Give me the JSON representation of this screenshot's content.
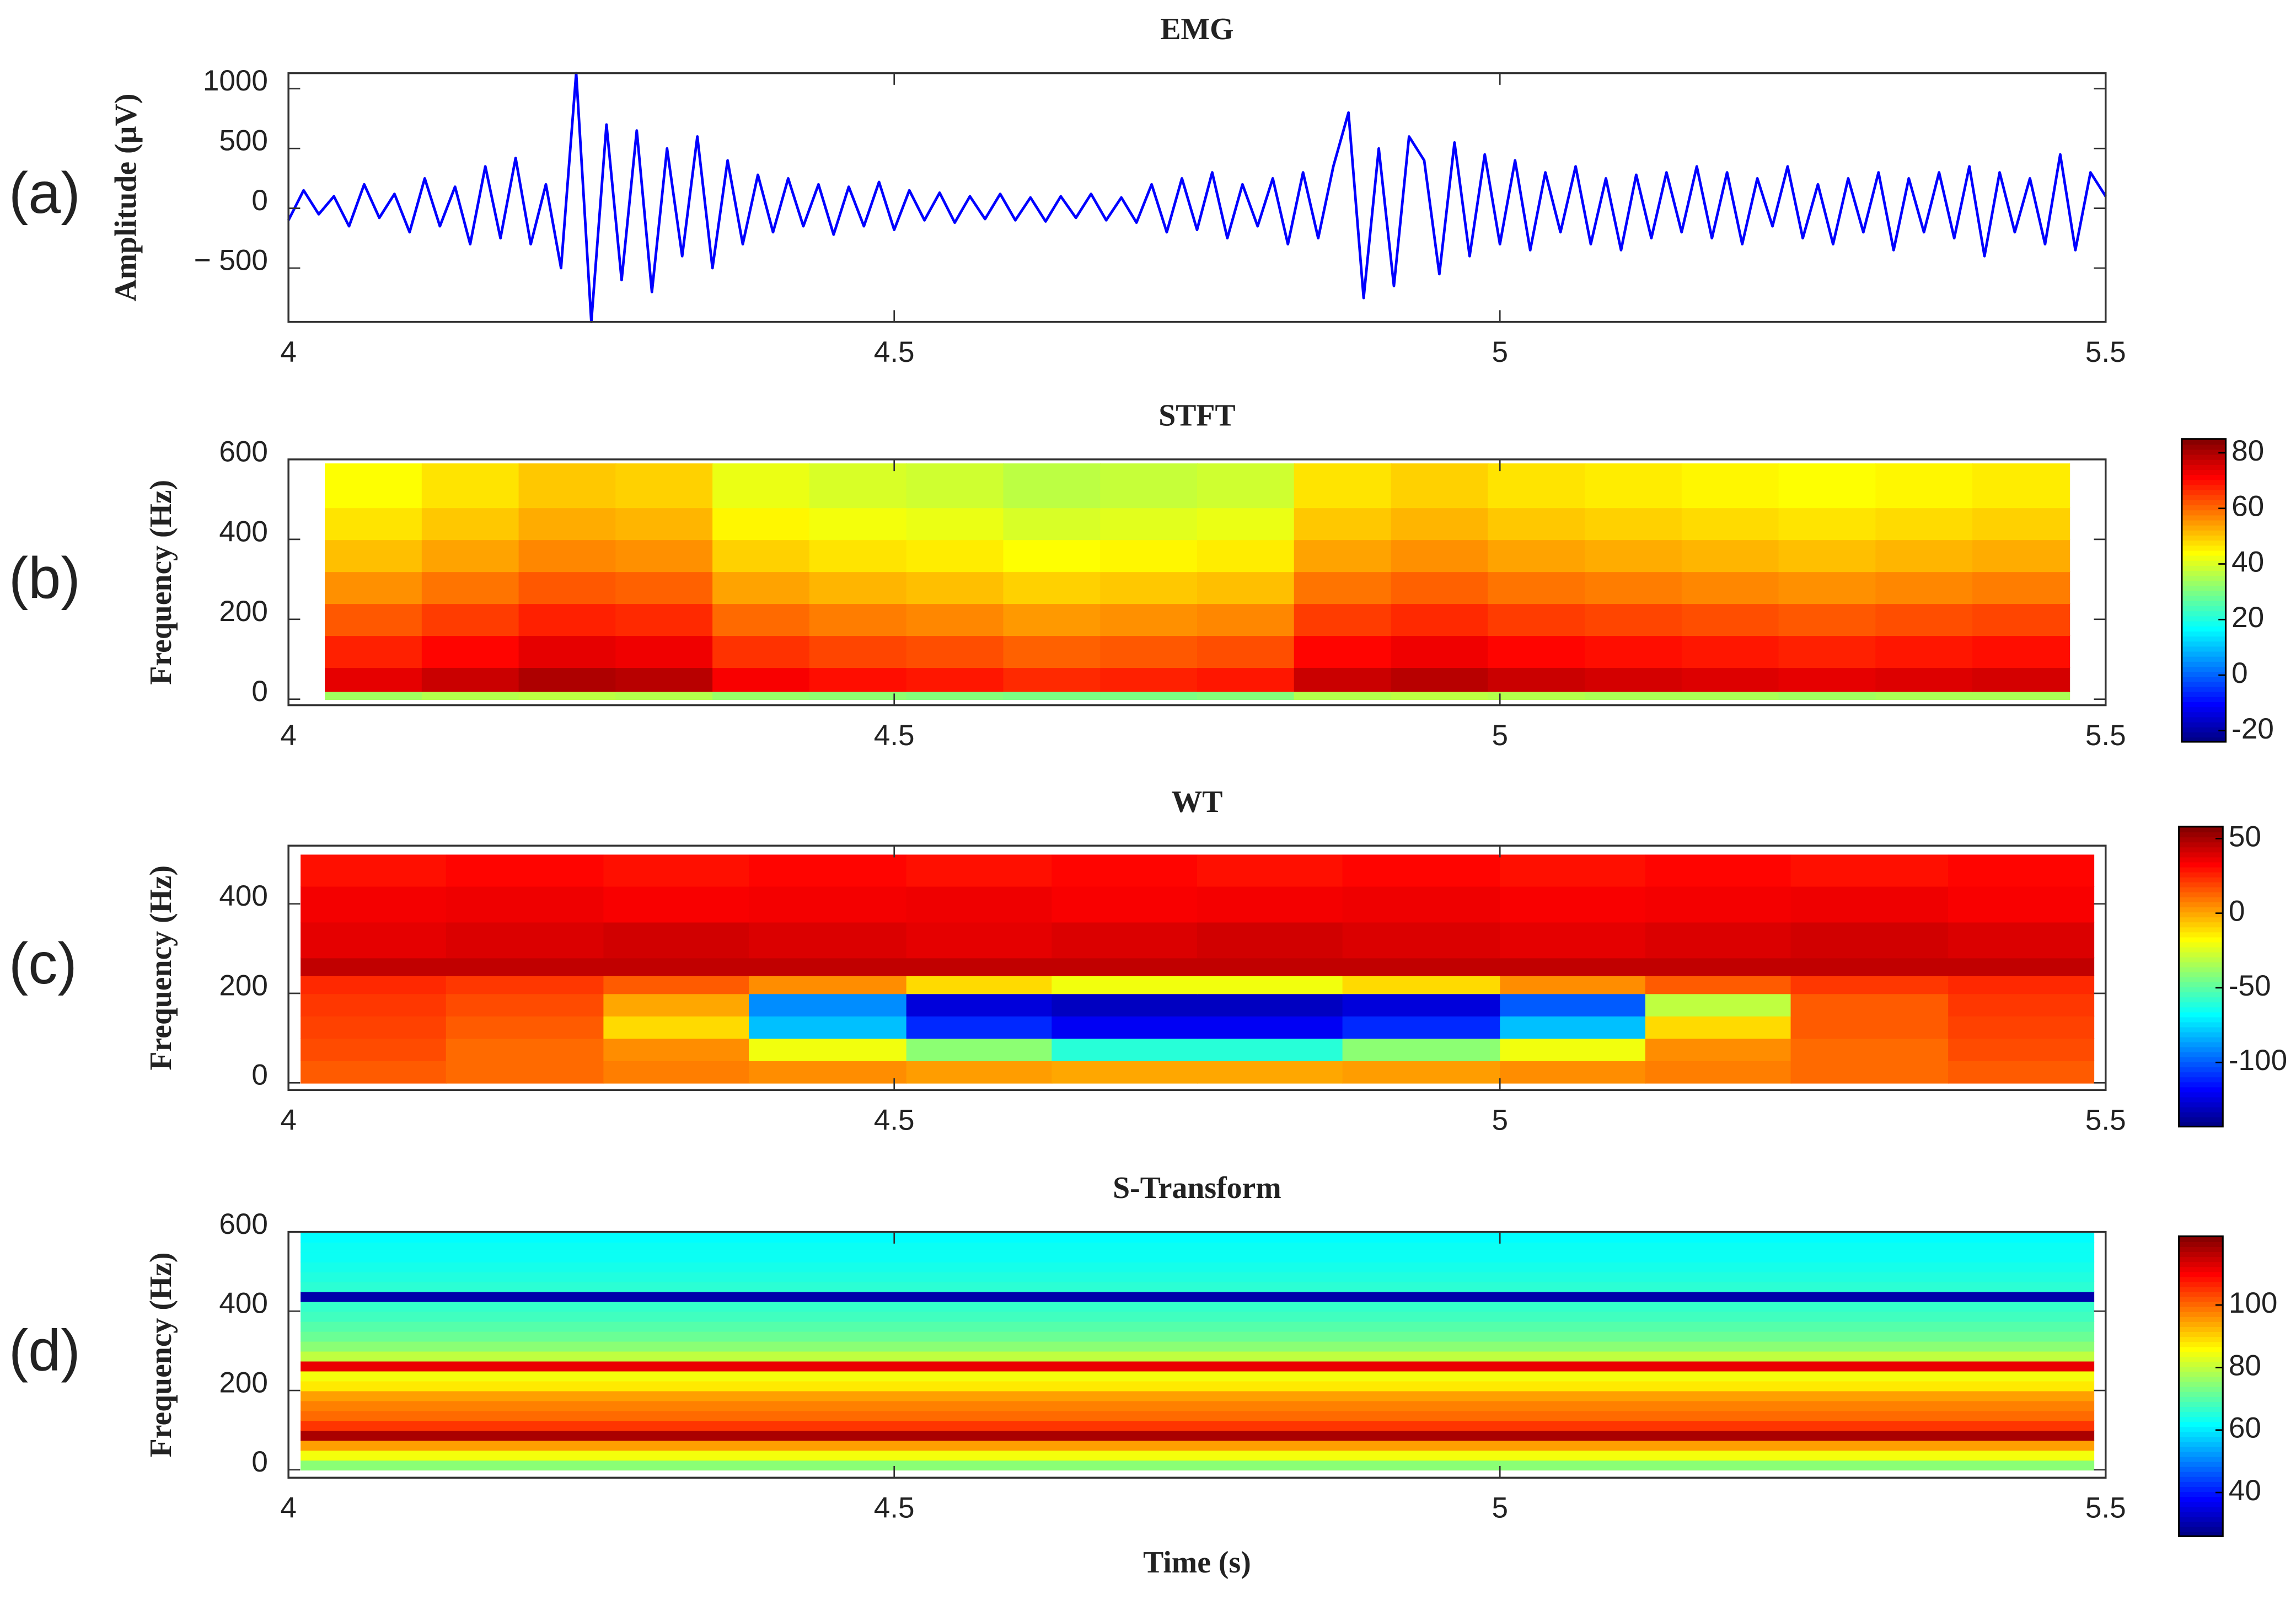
{
  "chart_data": [
    {
      "type": "line",
      "title": "EMG",
      "panel_label": "(a)",
      "y_label": "Amplitude (µV)",
      "color": "#0000ff",
      "xlim": [
        4,
        5.5
      ],
      "xticks": [
        4,
        4.5,
        5,
        5.5
      ],
      "ylim": [
        -950,
        1130
      ],
      "yticks": [
        1000,
        500,
        0,
        {
          "value": -500,
          "label": "− 500"
        }
      ],
      "x": [
        4,
        4.0125,
        4.025,
        4.0375,
        4.05,
        4.0625,
        4.075,
        4.0875,
        4.1,
        4.1125,
        4.125,
        4.1375,
        4.15,
        4.1625,
        4.175,
        4.1875,
        4.2,
        4.2125,
        4.225,
        4.2375,
        4.25,
        4.2625,
        4.275,
        4.2875,
        4.3,
        4.3125,
        4.325,
        4.3375,
        4.35,
        4.3625,
        4.375,
        4.3875,
        4.4,
        4.4125,
        4.425,
        4.4375,
        4.45,
        4.4625,
        4.475,
        4.4875,
        4.5,
        4.5125,
        4.525,
        4.5375,
        4.55,
        4.5625,
        4.575,
        4.5875,
        4.6,
        4.6125,
        4.625,
        4.6375,
        4.65,
        4.6625,
        4.675,
        4.6875,
        4.7,
        4.7125,
        4.725,
        4.7375,
        4.75,
        4.7625,
        4.775,
        4.7875,
        4.8,
        4.8125,
        4.825,
        4.8375,
        4.85,
        4.8625,
        4.875,
        4.8875,
        4.9,
        4.9125,
        4.925,
        4.9375,
        4.95,
        4.9625,
        4.975,
        4.9875,
        5,
        5.0125,
        5.025,
        5.0375,
        5.05,
        5.0625,
        5.075,
        5.0875,
        5.1,
        5.1125,
        5.125,
        5.1375,
        5.15,
        5.1625,
        5.175,
        5.1875,
        5.2,
        5.2125,
        5.225,
        5.2375,
        5.25,
        5.2625,
        5.275,
        5.2875,
        5.3,
        5.3125,
        5.325,
        5.3375,
        5.35,
        5.3625,
        5.375,
        5.3875,
        5.4,
        5.4125,
        5.425,
        5.4375,
        5.45,
        5.4625,
        5.475,
        5.4875,
        5.5
      ],
      "values": [
        -100,
        150,
        -50,
        100,
        -150,
        200,
        -80,
        120,
        -200,
        250,
        -150,
        180,
        -300,
        350,
        -250,
        420,
        -300,
        200,
        -500,
        1130,
        -950,
        700,
        -600,
        650,
        -700,
        500,
        -400,
        600,
        -500,
        400,
        -300,
        280,
        -200,
        250,
        -150,
        200,
        -220,
        180,
        -150,
        220,
        -180,
        150,
        -100,
        130,
        -120,
        100,
        -90,
        120,
        -100,
        90,
        -110,
        100,
        -80,
        120,
        -100,
        90,
        -120,
        200,
        -200,
        250,
        -180,
        300,
        -250,
        200,
        -150,
        250,
        -300,
        300,
        -250,
        350,
        800,
        -750,
        500,
        -650,
        600,
        400,
        -550,
        550,
        -400,
        450,
        -300,
        400,
        -350,
        300,
        -200,
        350,
        -300,
        250,
        -350,
        280,
        -250,
        300,
        -200,
        350,
        -250,
        300,
        -300,
        250,
        -150,
        350,
        -250,
        200,
        -300,
        250,
        -200,
        300,
        -350,
        250,
        -200,
        300,
        -250,
        350,
        -400,
        300,
        -200,
        250,
        -300,
        450,
        -350,
        300,
        100
      ]
    },
    {
      "type": "heatmap",
      "title": "STFT",
      "panel_label": "(b)",
      "y_label": "Frequency (Hz)",
      "colormap": "jet",
      "xlim": [
        4,
        5.5
      ],
      "xticks": [
        4,
        4.5,
        5,
        5.5
      ],
      "ylim": [
        -15,
        600
      ],
      "yticks": [
        600,
        400,
        200,
        0
      ],
      "clim": [
        -24,
        85
      ],
      "cticks": [
        80,
        60,
        40,
        20,
        0,
        -20
      ],
      "x_edges": [
        4.03,
        4.11,
        4.19,
        4.27,
        4.35,
        4.43,
        4.51,
        4.59,
        4.67,
        4.75,
        4.83,
        4.91,
        4.99,
        5.07,
        5.15,
        5.23,
        5.31,
        5.39,
        5.47
      ],
      "y_edges": [
        0,
        20,
        80,
        160,
        240,
        320,
        400,
        480,
        590
      ],
      "z": [
        [
          34,
          36,
          37,
          36,
          33,
          32,
          31,
          30,
          30,
          31,
          36,
          37,
          36,
          35,
          35,
          34,
          35,
          35
        ],
        [
          74,
          77,
          80,
          79,
          72,
          70,
          69,
          67,
          68,
          69,
          77,
          79,
          77,
          76,
          75,
          74,
          75,
          76
        ],
        [
          68,
          71,
          74,
          73,
          66,
          64,
          63,
          61,
          62,
          63,
          71,
          73,
          71,
          70,
          69,
          68,
          69,
          70
        ],
        [
          62,
          65,
          68,
          67,
          60,
          58,
          57,
          55,
          56,
          57,
          65,
          67,
          65,
          64,
          63,
          62,
          63,
          64
        ],
        [
          56,
          59,
          62,
          61,
          54,
          52,
          51,
          49,
          50,
          51,
          59,
          61,
          59,
          58,
          57,
          56,
          57,
          58
        ],
        [
          51,
          54,
          57,
          56,
          49,
          47,
          46,
          44,
          45,
          46,
          54,
          56,
          54,
          53,
          52,
          51,
          52,
          53
        ],
        [
          47,
          50,
          53,
          52,
          45,
          43,
          42,
          40,
          41,
          42,
          50,
          52,
          50,
          49,
          48,
          47,
          48,
          49
        ],
        [
          44,
          47,
          50,
          49,
          42,
          40,
          39,
          37,
          38,
          39,
          47,
          49,
          47,
          46,
          45,
          44,
          45,
          46
        ]
      ]
    },
    {
      "type": "heatmap",
      "title": "WT",
      "panel_label": "(c)",
      "y_label": "Frequency (Hz)",
      "colormap": "jet",
      "xlim": [
        4,
        5.5
      ],
      "xticks": [
        4,
        4.5,
        5,
        5.5
      ],
      "ylim": [
        -16,
        530
      ],
      "yticks": [
        400,
        200,
        0
      ],
      "clim": [
        -143,
        58
      ],
      "cticks": [
        50,
        0,
        -50,
        -100
      ],
      "x_edges": [
        4.01,
        4.13,
        4.26,
        4.38,
        4.51,
        4.63,
        4.75,
        4.87,
        5.0,
        5.12,
        5.24,
        5.37,
        5.49
      ],
      "y_edges": [
        0,
        50,
        100,
        150,
        200,
        240,
        280,
        360,
        440,
        510
      ],
      "z": [
        [
          15,
          12,
          8,
          5,
          2,
          0,
          0,
          2,
          5,
          8,
          12,
          15
        ],
        [
          18,
          12,
          5,
          -20,
          -40,
          -60,
          -60,
          -40,
          -20,
          5,
          12,
          18
        ],
        [
          20,
          15,
          -10,
          -80,
          -110,
          -120,
          -120,
          -110,
          -80,
          -10,
          15,
          20
        ],
        [
          22,
          18,
          0,
          -90,
          -125,
          -130,
          -130,
          -125,
          -100,
          -30,
          15,
          22
        ],
        [
          25,
          22,
          15,
          5,
          -10,
          -20,
          -20,
          -10,
          5,
          15,
          22,
          25
        ],
        [
          45,
          45,
          45,
          45,
          45,
          45,
          45,
          45,
          45,
          45,
          45,
          45
        ],
        [
          38,
          40,
          42,
          40,
          38,
          40,
          42,
          40,
          38,
          40,
          42,
          40
        ],
        [
          35,
          36,
          34,
          35,
          36,
          34,
          35,
          36,
          34,
          35,
          36,
          34
        ],
        [
          30,
          32,
          30,
          32,
          30,
          32,
          30,
          32,
          30,
          32,
          30,
          32
        ]
      ]
    },
    {
      "type": "heatmap",
      "title": "S-Transform",
      "panel_label": "(d)",
      "y_label": "Frequency (Hz)",
      "x_label": "Time (s)",
      "colormap": "jet",
      "xlim": [
        4,
        5.5
      ],
      "xticks": [
        4,
        4.5,
        5,
        5.5
      ],
      "ylim": [
        -20,
        600
      ],
      "yticks": [
        600,
        400,
        200,
        0
      ],
      "clim": [
        26,
        122
      ],
      "cticks": [
        100,
        80,
        60,
        40
      ],
      "x_edges": [
        4.01,
        5.49
      ],
      "y_edges": [
        0,
        25,
        50,
        75,
        100,
        125,
        150,
        175,
        200,
        225,
        250,
        275,
        300,
        325,
        350,
        375,
        400,
        425,
        450,
        475,
        500,
        525,
        550,
        575,
        600
      ],
      "z": [
        [
          75
        ],
        [
          85
        ],
        [
          95
        ],
        [
          118
        ],
        [
          105
        ],
        [
          100
        ],
        [
          98
        ],
        [
          95
        ],
        [
          88
        ],
        [
          85
        ],
        [
          112
        ],
        [
          80
        ],
        [
          75
        ],
        [
          72
        ],
        [
          70
        ],
        [
          68
        ],
        [
          67
        ],
        [
          30
        ],
        [
          66
        ],
        [
          65
        ],
        [
          64
        ],
        [
          63
        ],
        [
          63
        ],
        [
          62
        ]
      ]
    }
  ]
}
